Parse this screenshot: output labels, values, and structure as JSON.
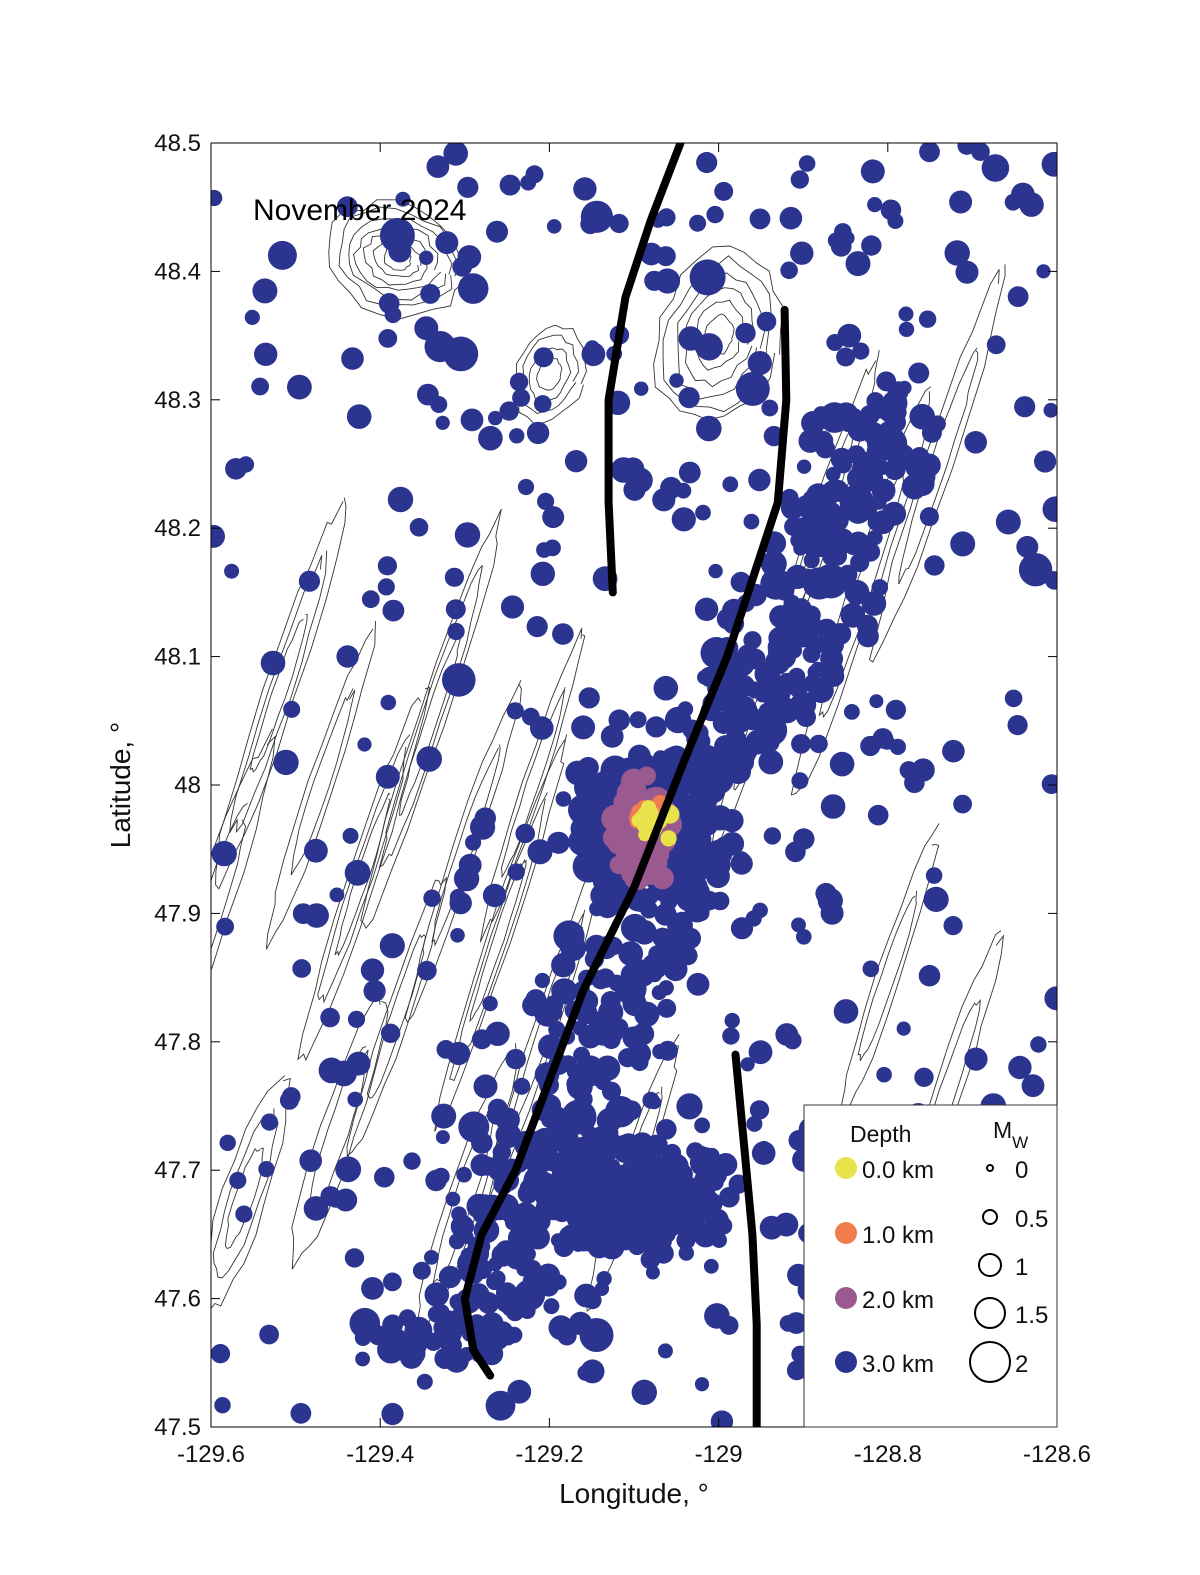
{
  "title": "November 2024",
  "axes": {
    "xlabel": "Longitude, °",
    "ylabel": "Latitude, °",
    "xlim": [
      -129.6,
      -128.6
    ],
    "ylim": [
      47.5,
      48.5
    ],
    "xticks": [
      -129.6,
      -129.4,
      -129.2,
      -129,
      -128.8,
      -128.6
    ],
    "yticks": [
      47.5,
      47.6,
      47.7,
      47.8,
      47.9,
      48,
      48.1,
      48.2,
      48.3,
      48.4,
      48.5
    ],
    "xtick_labels": [
      "-129.6",
      "-129.4",
      "-129.2",
      "-129",
      "-128.8",
      "-128.6"
    ],
    "ytick_labels": [
      "47.5",
      "47.6",
      "47.7",
      "47.8",
      "47.9",
      "48",
      "48.1",
      "48.2",
      "48.3",
      "48.4",
      "48.5"
    ]
  },
  "colors": {
    "depth_0": "#e8e34a",
    "depth_1": "#f07d4e",
    "depth_2": "#9a5a8f",
    "depth_3": "#2b3590",
    "contour": "#333333",
    "plate_boundary": "#000000"
  },
  "legend": {
    "depth_title": "Depth",
    "mw_title": "M",
    "mw_subscript": "W",
    "depth_entries": [
      {
        "label": "0.0 km",
        "color": "#e8e34a"
      },
      {
        "label": "1.0 km",
        "color": "#f07d4e"
      },
      {
        "label": "2.0 km",
        "color": "#9a5a8f"
      },
      {
        "label": "3.0 km",
        "color": "#2b3590"
      }
    ],
    "mw_entries": [
      {
        "label": "0",
        "mw": 0
      },
      {
        "label": "0.5",
        "mw": 0.5
      },
      {
        "label": "1",
        "mw": 1
      },
      {
        "label": "1.5",
        "mw": 1.5
      },
      {
        "label": "2",
        "mw": 2
      }
    ]
  },
  "chart_data": {
    "type": "scatter",
    "title": "November 2024",
    "xlabel": "Longitude, °",
    "ylabel": "Latitude, °",
    "xlim": [
      -129.6,
      -128.6
    ],
    "ylim": [
      47.5,
      48.5
    ],
    "grid": false,
    "legend_position": "bottom-right",
    "color_encoding": "depth (km)",
    "size_encoding": "moment magnitude (Mw)",
    "plate_boundaries": [
      [
        [
          -129.045,
          48.5
        ],
        [
          -129.08,
          48.44
        ],
        [
          -129.11,
          48.38
        ],
        [
          -129.13,
          48.3
        ],
        [
          -129.13,
          48.22
        ],
        [
          -129.125,
          48.15
        ]
      ],
      [
        [
          -128.922,
          48.37
        ],
        [
          -128.92,
          48.3
        ],
        [
          -128.93,
          48.22
        ],
        [
          -128.96,
          48.16
        ],
        [
          -128.99,
          48.1
        ],
        [
          -129.04,
          48.02
        ],
        [
          -129.1,
          47.92
        ],
        [
          -129.16,
          47.84
        ],
        [
          -129.2,
          47.77
        ],
        [
          -129.24,
          47.7
        ],
        [
          -129.28,
          47.65
        ],
        [
          -129.3,
          47.6
        ],
        [
          -129.29,
          47.56
        ],
        [
          -129.27,
          47.54
        ]
      ],
      [
        [
          -128.98,
          47.79
        ],
        [
          -128.97,
          47.72
        ],
        [
          -128.96,
          47.65
        ],
        [
          -128.955,
          47.58
        ],
        [
          -128.955,
          47.5
        ]
      ]
    ],
    "events_note": "dense swarm centred near -129.09, 47.97; colours = depth, sizes = Mw"
  }
}
